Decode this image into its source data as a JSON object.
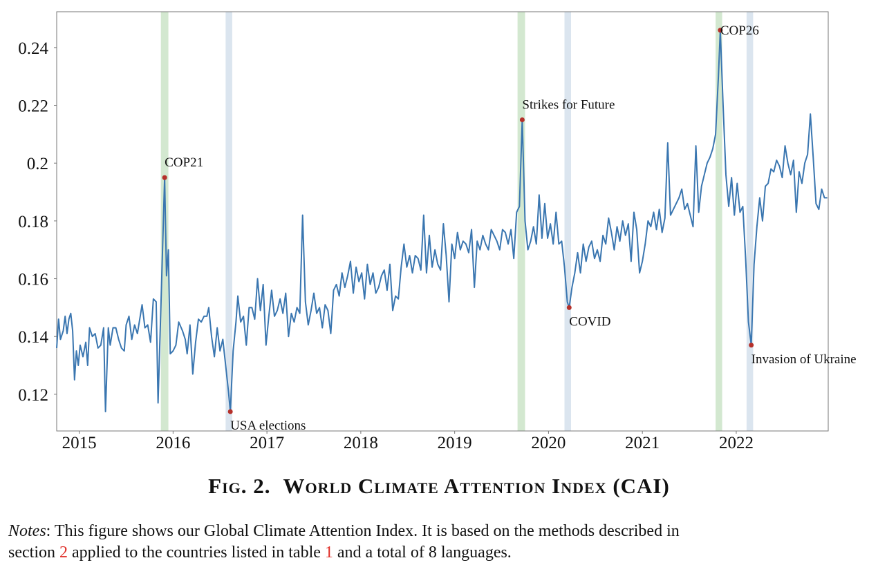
{
  "chart_data": {
    "type": "line",
    "xlim": [
      2014.76,
      2022.98
    ],
    "ylim": [
      0.1073,
      0.2524
    ],
    "xticks": [
      2015,
      2016,
      2017,
      2018,
      2019,
      2020,
      2021,
      2022
    ],
    "yticks": [
      0.12,
      0.14,
      0.16,
      0.18,
      0.2,
      0.22,
      0.24
    ],
    "color": "#3a76b0",
    "marker_color": "#b5302a",
    "grid": false,
    "x": [
      2014.76,
      2014.78,
      2014.8,
      2014.83,
      2014.85,
      2014.87,
      2014.89,
      2014.91,
      2014.93,
      2014.95,
      2014.97,
      2014.99,
      2015.01,
      2015.04,
      2015.07,
      2015.09,
      2015.11,
      2015.14,
      2015.17,
      2015.2,
      2015.23,
      2015.26,
      2015.28,
      2015.31,
      2015.33,
      2015.36,
      2015.39,
      2015.42,
      2015.45,
      2015.48,
      2015.5,
      2015.53,
      2015.56,
      2015.59,
      2015.62,
      2015.65,
      2015.67,
      2015.7,
      2015.73,
      2015.76,
      2015.79,
      2015.82,
      2015.84,
      2015.87,
      2015.91,
      2015.93,
      2015.95,
      2015.97,
      2016.0,
      2016.03,
      2016.06,
      2016.1,
      2016.13,
      2016.15,
      2016.18,
      2016.21,
      2016.24,
      2016.27,
      2016.3,
      2016.33,
      2016.36,
      2016.38,
      2016.41,
      2016.44,
      2016.47,
      2016.5,
      2016.53,
      2016.56,
      2016.59,
      2016.61,
      2016.64,
      2016.67,
      2016.69,
      2016.72,
      2016.75,
      2016.78,
      2016.81,
      2016.84,
      2016.87,
      2016.9,
      2016.93,
      2016.96,
      2016.99,
      2017.02,
      2017.05,
      2017.08,
      2017.11,
      2017.14,
      2017.17,
      2017.2,
      2017.23,
      2017.26,
      2017.29,
      2017.32,
      2017.35,
      2017.38,
      2017.41,
      2017.44,
      2017.47,
      2017.5,
      2017.53,
      2017.56,
      2017.59,
      2017.62,
      2017.65,
      2017.68,
      2017.71,
      2017.74,
      2017.77,
      2017.8,
      2017.83,
      2017.86,
      2017.89,
      2017.92,
      2017.95,
      2017.98,
      2018.01,
      2018.04,
      2018.07,
      2018.1,
      2018.13,
      2018.16,
      2018.19,
      2018.22,
      2018.25,
      2018.28,
      2018.31,
      2018.34,
      2018.37,
      2018.4,
      2018.43,
      2018.46,
      2018.49,
      2018.52,
      2018.55,
      2018.58,
      2018.61,
      2018.64,
      2018.67,
      2018.7,
      2018.73,
      2018.76,
      2018.79,
      2018.82,
      2018.85,
      2018.88,
      2018.91,
      2018.94,
      2018.97,
      2019.0,
      2019.03,
      2019.06,
      2019.09,
      2019.12,
      2019.15,
      2019.18,
      2019.21,
      2019.24,
      2019.27,
      2019.3,
      2019.33,
      2019.36,
      2019.39,
      2019.42,
      2019.45,
      2019.48,
      2019.51,
      2019.54,
      2019.57,
      2019.6,
      2019.63,
      2019.66,
      2019.69,
      2019.72,
      2019.75,
      2019.78,
      2019.81,
      2019.84,
      2019.87,
      2019.9,
      2019.93,
      2019.96,
      2019.99,
      2020.02,
      2020.05,
      2020.08,
      2020.11,
      2020.14,
      2020.17,
      2020.2,
      2020.22,
      2020.25,
      2020.28,
      2020.31,
      2020.34,
      2020.37,
      2020.4,
      2020.43,
      2020.46,
      2020.49,
      2020.52,
      2020.55,
      2020.58,
      2020.61,
      2020.64,
      2020.67,
      2020.7,
      2020.73,
      2020.76,
      2020.79,
      2020.82,
      2020.85,
      2020.88,
      2020.91,
      2020.94,
      2020.97,
      2021.0,
      2021.03,
      2021.06,
      2021.09,
      2021.12,
      2021.15,
      2021.18,
      2021.21,
      2021.24,
      2021.27,
      2021.3,
      2021.33,
      2021.36,
      2021.39,
      2021.42,
      2021.45,
      2021.48,
      2021.51,
      2021.54,
      2021.57,
      2021.6,
      2021.63,
      2021.66,
      2021.69,
      2021.72,
      2021.75,
      2021.78,
      2021.81,
      2021.83,
      2021.86,
      2021.89,
      2021.92,
      2021.95,
      2021.98,
      2022.01,
      2022.04,
      2022.07,
      2022.1,
      2022.13,
      2022.16,
      2022.19,
      2022.22,
      2022.25,
      2022.28,
      2022.31,
      2022.34,
      2022.37,
      2022.4,
      2022.43,
      2022.46,
      2022.49,
      2022.52,
      2022.55,
      2022.58,
      2022.61,
      2022.64,
      2022.67,
      2022.7,
      2022.73,
      2022.76,
      2022.79,
      2022.82,
      2022.85,
      2022.88,
      2022.91,
      2022.94,
      2022.97
    ],
    "values": [
      0.136,
      0.146,
      0.139,
      0.142,
      0.147,
      0.141,
      0.146,
      0.148,
      0.142,
      0.125,
      0.135,
      0.13,
      0.137,
      0.133,
      0.138,
      0.13,
      0.143,
      0.14,
      0.141,
      0.136,
      0.137,
      0.143,
      0.114,
      0.143,
      0.137,
      0.143,
      0.143,
      0.139,
      0.136,
      0.135,
      0.144,
      0.147,
      0.139,
      0.144,
      0.141,
      0.147,
      0.151,
      0.143,
      0.144,
      0.138,
      0.153,
      0.152,
      0.117,
      0.15,
      0.195,
      0.161,
      0.17,
      0.134,
      0.135,
      0.137,
      0.145,
      0.142,
      0.139,
      0.134,
      0.144,
      0.127,
      0.138,
      0.146,
      0.145,
      0.147,
      0.147,
      0.15,
      0.14,
      0.133,
      0.143,
      0.135,
      0.139,
      0.13,
      0.121,
      0.114,
      0.135,
      0.145,
      0.154,
      0.145,
      0.147,
      0.137,
      0.15,
      0.15,
      0.146,
      0.16,
      0.149,
      0.158,
      0.137,
      0.147,
      0.156,
      0.147,
      0.149,
      0.153,
      0.148,
      0.155,
      0.14,
      0.148,
      0.145,
      0.15,
      0.148,
      0.182,
      0.152,
      0.144,
      0.149,
      0.155,
      0.148,
      0.15,
      0.143,
      0.151,
      0.149,
      0.141,
      0.156,
      0.158,
      0.154,
      0.162,
      0.157,
      0.161,
      0.166,
      0.155,
      0.164,
      0.159,
      0.162,
      0.153,
      0.165,
      0.158,
      0.162,
      0.155,
      0.157,
      0.161,
      0.163,
      0.156,
      0.165,
      0.149,
      0.154,
      0.153,
      0.164,
      0.172,
      0.164,
      0.168,
      0.162,
      0.168,
      0.167,
      0.163,
      0.182,
      0.162,
      0.175,
      0.164,
      0.17,
      0.165,
      0.163,
      0.179,
      0.168,
      0.152,
      0.172,
      0.167,
      0.176,
      0.17,
      0.173,
      0.172,
      0.169,
      0.177,
      0.157,
      0.173,
      0.17,
      0.175,
      0.172,
      0.17,
      0.177,
      0.175,
      0.173,
      0.17,
      0.177,
      0.176,
      0.172,
      0.177,
      0.167,
      0.183,
      0.185,
      0.215,
      0.18,
      0.17,
      0.173,
      0.178,
      0.172,
      0.189,
      0.174,
      0.186,
      0.174,
      0.179,
      0.172,
      0.183,
      0.172,
      0.173,
      0.164,
      0.152,
      0.15,
      0.157,
      0.162,
      0.169,
      0.162,
      0.172,
      0.166,
      0.171,
      0.173,
      0.167,
      0.17,
      0.166,
      0.175,
      0.172,
      0.181,
      0.176,
      0.17,
      0.178,
      0.173,
      0.18,
      0.175,
      0.179,
      0.166,
      0.183,
      0.177,
      0.162,
      0.166,
      0.172,
      0.18,
      0.178,
      0.183,
      0.177,
      0.184,
      0.176,
      0.181,
      0.207,
      0.182,
      0.184,
      0.186,
      0.188,
      0.191,
      0.184,
      0.186,
      0.182,
      0.178,
      0.206,
      0.183,
      0.192,
      0.196,
      0.2,
      0.202,
      0.205,
      0.21,
      0.23,
      0.246,
      0.22,
      0.196,
      0.185,
      0.195,
      0.182,
      0.193,
      0.183,
      0.185,
      0.167,
      0.145,
      0.137,
      0.165,
      0.178,
      0.188,
      0.18,
      0.192,
      0.193,
      0.198,
      0.197,
      0.201,
      0.199,
      0.195,
      0.206,
      0.2,
      0.196,
      0.201,
      0.183,
      0.197,
      0.193,
      0.2,
      0.203,
      0.217,
      0.202,
      0.186,
      0.184,
      0.191,
      0.188,
      0.188
    ],
    "highlights": [
      {
        "range": [
          2015.87,
          2015.95
        ],
        "color": "#d3e8d0"
      },
      {
        "range": [
          2016.56,
          2016.63
        ],
        "color": "#dbe5ef"
      },
      {
        "range": [
          2019.67,
          2019.75
        ],
        "color": "#d3e8d0"
      },
      {
        "range": [
          2020.17,
          2020.24
        ],
        "color": "#dbe5ef"
      },
      {
        "range": [
          2021.78,
          2021.85
        ],
        "color": "#d3e8d0"
      },
      {
        "range": [
          2022.11,
          2022.18
        ],
        "color": "#dbe5ef"
      }
    ],
    "annotations": [
      {
        "text": "COP21",
        "x": 2015.91,
        "y": 0.195
      },
      {
        "text": "USA elections",
        "x": 2016.61,
        "y": 0.114
      },
      {
        "text": "Strikes for Future",
        "x": 2019.72,
        "y": 0.215
      },
      {
        "text": "COVID",
        "x": 2020.22,
        "y": 0.15
      },
      {
        "text": "COP26",
        "x": 2021.83,
        "y": 0.246
      },
      {
        "text": "Invasion of Ukraine",
        "x": 2022.16,
        "y": 0.137
      }
    ]
  },
  "caption": {
    "label": "Fig. 2.",
    "title": "World Climate Attention Index (CAI)"
  },
  "notes": {
    "label": "Notes",
    "text_1": ": This figure shows our Global Climate Attention Index. It is based on the methods described in",
    "text_2": "section ",
    "ref_section": "2",
    "text_3": " applied to the countries listed in table ",
    "ref_table": "1",
    "text_4": " and a total of 8 languages."
  }
}
